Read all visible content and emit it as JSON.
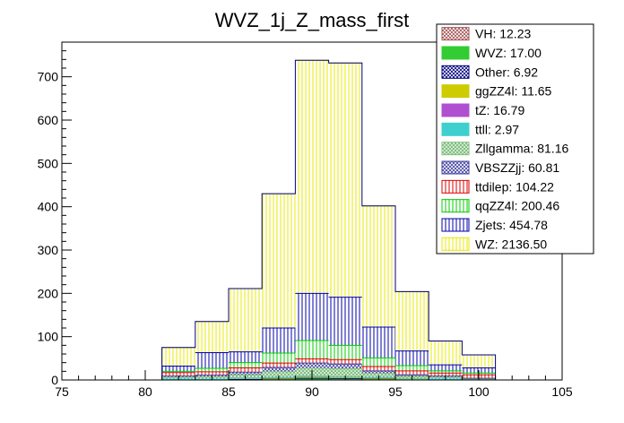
{
  "chart_data": {
    "type": "bar",
    "title": "WVZ_1j_Z_mass_first",
    "xlabel": "",
    "ylabel": "",
    "xlim": [
      75,
      105
    ],
    "ylim": [
      0,
      780
    ],
    "x_ticks": [
      75,
      80,
      85,
      90,
      95,
      100,
      105
    ],
    "y_ticks": [
      0,
      100,
      200,
      300,
      400,
      500,
      600,
      700
    ],
    "stacked": true,
    "bin_edges": [
      81,
      83,
      85,
      87,
      89,
      91,
      93,
      95,
      97,
      99,
      101
    ],
    "legend_position": "top-right",
    "series": [
      {
        "name": "VH: 12.23",
        "color": "#a05050",
        "pattern": "cross",
        "values": [
          0,
          0,
          0,
          0,
          1,
          0,
          0,
          0,
          0,
          0
        ]
      },
      {
        "name": "WVZ: 17.00",
        "color": "#33cc33",
        "pattern": "solid",
        "values": [
          0,
          0,
          0,
          1,
          1,
          1,
          1,
          0,
          0,
          0
        ]
      },
      {
        "name": "Other: 6.92",
        "color": "#00007f",
        "pattern": "cross",
        "values": [
          1,
          1,
          2,
          2,
          2,
          2,
          2,
          1,
          1,
          0
        ]
      },
      {
        "name": "ggZZ4l: 11.65",
        "color": "#cccc00",
        "pattern": "solid",
        "values": [
          0,
          0,
          1,
          1,
          2,
          2,
          1,
          1,
          0,
          0
        ]
      },
      {
        "name": "tZ: 16.79",
        "color": "#b04fd1",
        "pattern": "solid",
        "values": [
          1,
          1,
          1,
          2,
          2,
          2,
          2,
          1,
          1,
          0
        ]
      },
      {
        "name": "ttll: 2.97",
        "color": "#3fcfcf",
        "pattern": "solid",
        "values": [
          0,
          0,
          0,
          0,
          0,
          0,
          0,
          0,
          0,
          0
        ]
      },
      {
        "name": "Zllgamma: 81.16",
        "color": "#7fbf7f",
        "pattern": "dense",
        "values": [
          4,
          5,
          8,
          13,
          19,
          19,
          9,
          5,
          4,
          2
        ]
      },
      {
        "name": "VBSZZjj: 60.81",
        "color": "#3f3f9f",
        "pattern": "cross",
        "values": [
          3,
          4,
          6,
          10,
          12,
          11,
          6,
          4,
          3,
          2
        ]
      },
      {
        "name": "ttdilep: 104.22",
        "color": "#dd0000",
        "pattern": "vertical",
        "values": [
          8,
          8,
          10,
          10,
          10,
          10,
          10,
          9,
          7,
          8
        ]
      },
      {
        "name": "qqZZ4l: 200.46",
        "color": "#00cc00",
        "pattern": "vertical",
        "values": [
          3,
          8,
          12,
          23,
          42,
          33,
          20,
          12,
          5,
          4
        ]
      },
      {
        "name": "Zjets: 454.78",
        "color": "#0000aa",
        "pattern": "vertical",
        "values": [
          12,
          36,
          25,
          58,
          109,
          111,
          71,
          34,
          14,
          12
        ]
      },
      {
        "name": "WZ: 2136.50",
        "color": "#e8e800",
        "pattern": "vertical",
        "values": [
          43,
          72,
          146,
          310,
          538,
          541,
          280,
          137,
          55,
          30
        ]
      }
    ]
  }
}
